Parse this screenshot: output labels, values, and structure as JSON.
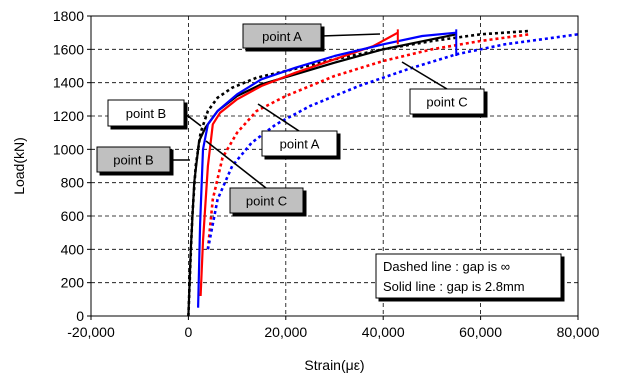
{
  "chart_data": {
    "type": "line",
    "xlabel": "Strain(με)",
    "ylabel": "Load(kN)",
    "xlim": [
      -20000,
      80000
    ],
    "ylim": [
      0,
      1800
    ],
    "xticks": [
      -20000,
      0,
      20000,
      40000,
      60000,
      80000
    ],
    "yticks": [
      0,
      200,
      400,
      600,
      800,
      1000,
      1200,
      1400,
      1600,
      1800
    ],
    "xtick_labels": [
      "-20,000",
      "0",
      "20,000",
      "40,000",
      "60,000",
      "80,000"
    ],
    "ytick_labels": [
      "0",
      "200",
      "400",
      "600",
      "800",
      "1000",
      "1200",
      "1400",
      "1600",
      "1800"
    ],
    "grid": "dashed",
    "series": [
      {
        "color": "#000000",
        "style": "dashed",
        "x": [
          0,
          400,
          800,
          1500,
          2500,
          4000,
          6000,
          9000,
          14000,
          20000,
          30000,
          40000,
          50000,
          60000,
          70000
        ],
        "y": [
          0,
          300,
          600,
          900,
          1100,
          1230,
          1310,
          1370,
          1430,
          1470,
          1540,
          1600,
          1650,
          1690,
          1710
        ]
      },
      {
        "color": "#ff0000",
        "style": "dashed",
        "x": [
          4000,
          5000,
          7000,
          10000,
          14000,
          20000,
          30000,
          40000,
          50000,
          60000,
          70000
        ],
        "y": [
          400,
          700,
          950,
          1100,
          1230,
          1320,
          1440,
          1530,
          1600,
          1650,
          1690
        ]
      },
      {
        "color": "#0000ff",
        "style": "dashed",
        "x": [
          4000,
          6000,
          9000,
          13000,
          18000,
          25000,
          35000,
          45000,
          55000,
          65000,
          75000,
          80000
        ],
        "y": [
          400,
          700,
          900,
          1040,
          1150,
          1260,
          1380,
          1480,
          1570,
          1630,
          1670,
          1690
        ]
      },
      {
        "color": "#000000",
        "style": "solid",
        "x": [
          0,
          500,
          1200,
          2200,
          3500,
          6000,
          10000,
          15000,
          22000,
          30000,
          40000,
          50000,
          55000
        ],
        "y": [
          0,
          400,
          800,
          1050,
          1130,
          1230,
          1320,
          1390,
          1450,
          1520,
          1600,
          1660,
          1690
        ]
      },
      {
        "color": "#ff0000",
        "style": "solid",
        "x": [
          2500,
          3000,
          4000,
          5000,
          6500,
          10000,
          15000,
          22000,
          30000,
          38000,
          43000
        ],
        "y": [
          120,
          450,
          900,
          1150,
          1220,
          1300,
          1380,
          1460,
          1540,
          1620,
          1700
        ]
      },
      {
        "color": "#0000ff",
        "style": "solid",
        "x": [
          2000,
          2400,
          3000,
          4000,
          6000,
          10000,
          15000,
          22000,
          30000,
          40000,
          48000,
          55000
        ],
        "y": [
          50,
          550,
          1000,
          1150,
          1230,
          1330,
          1420,
          1490,
          1560,
          1630,
          1680,
          1700
        ]
      }
    ],
    "annotations": [
      {
        "text": "point A",
        "style": "filled"
      },
      {
        "text": "point B",
        "style": "box"
      },
      {
        "text": "point C",
        "style": "box"
      },
      {
        "text": "point A",
        "style": "box"
      },
      {
        "text": "point B",
        "style": "filled"
      },
      {
        "text": "point C",
        "style": "filled"
      }
    ],
    "note_lines": [
      "Dashed line : gap is ∞",
      "Solid line : gap is 2.8mm"
    ],
    "colors": {
      "black": "#000000",
      "red": "#ff0000",
      "blue": "#0000ff",
      "callout_fill": "#c0c0c0"
    }
  }
}
